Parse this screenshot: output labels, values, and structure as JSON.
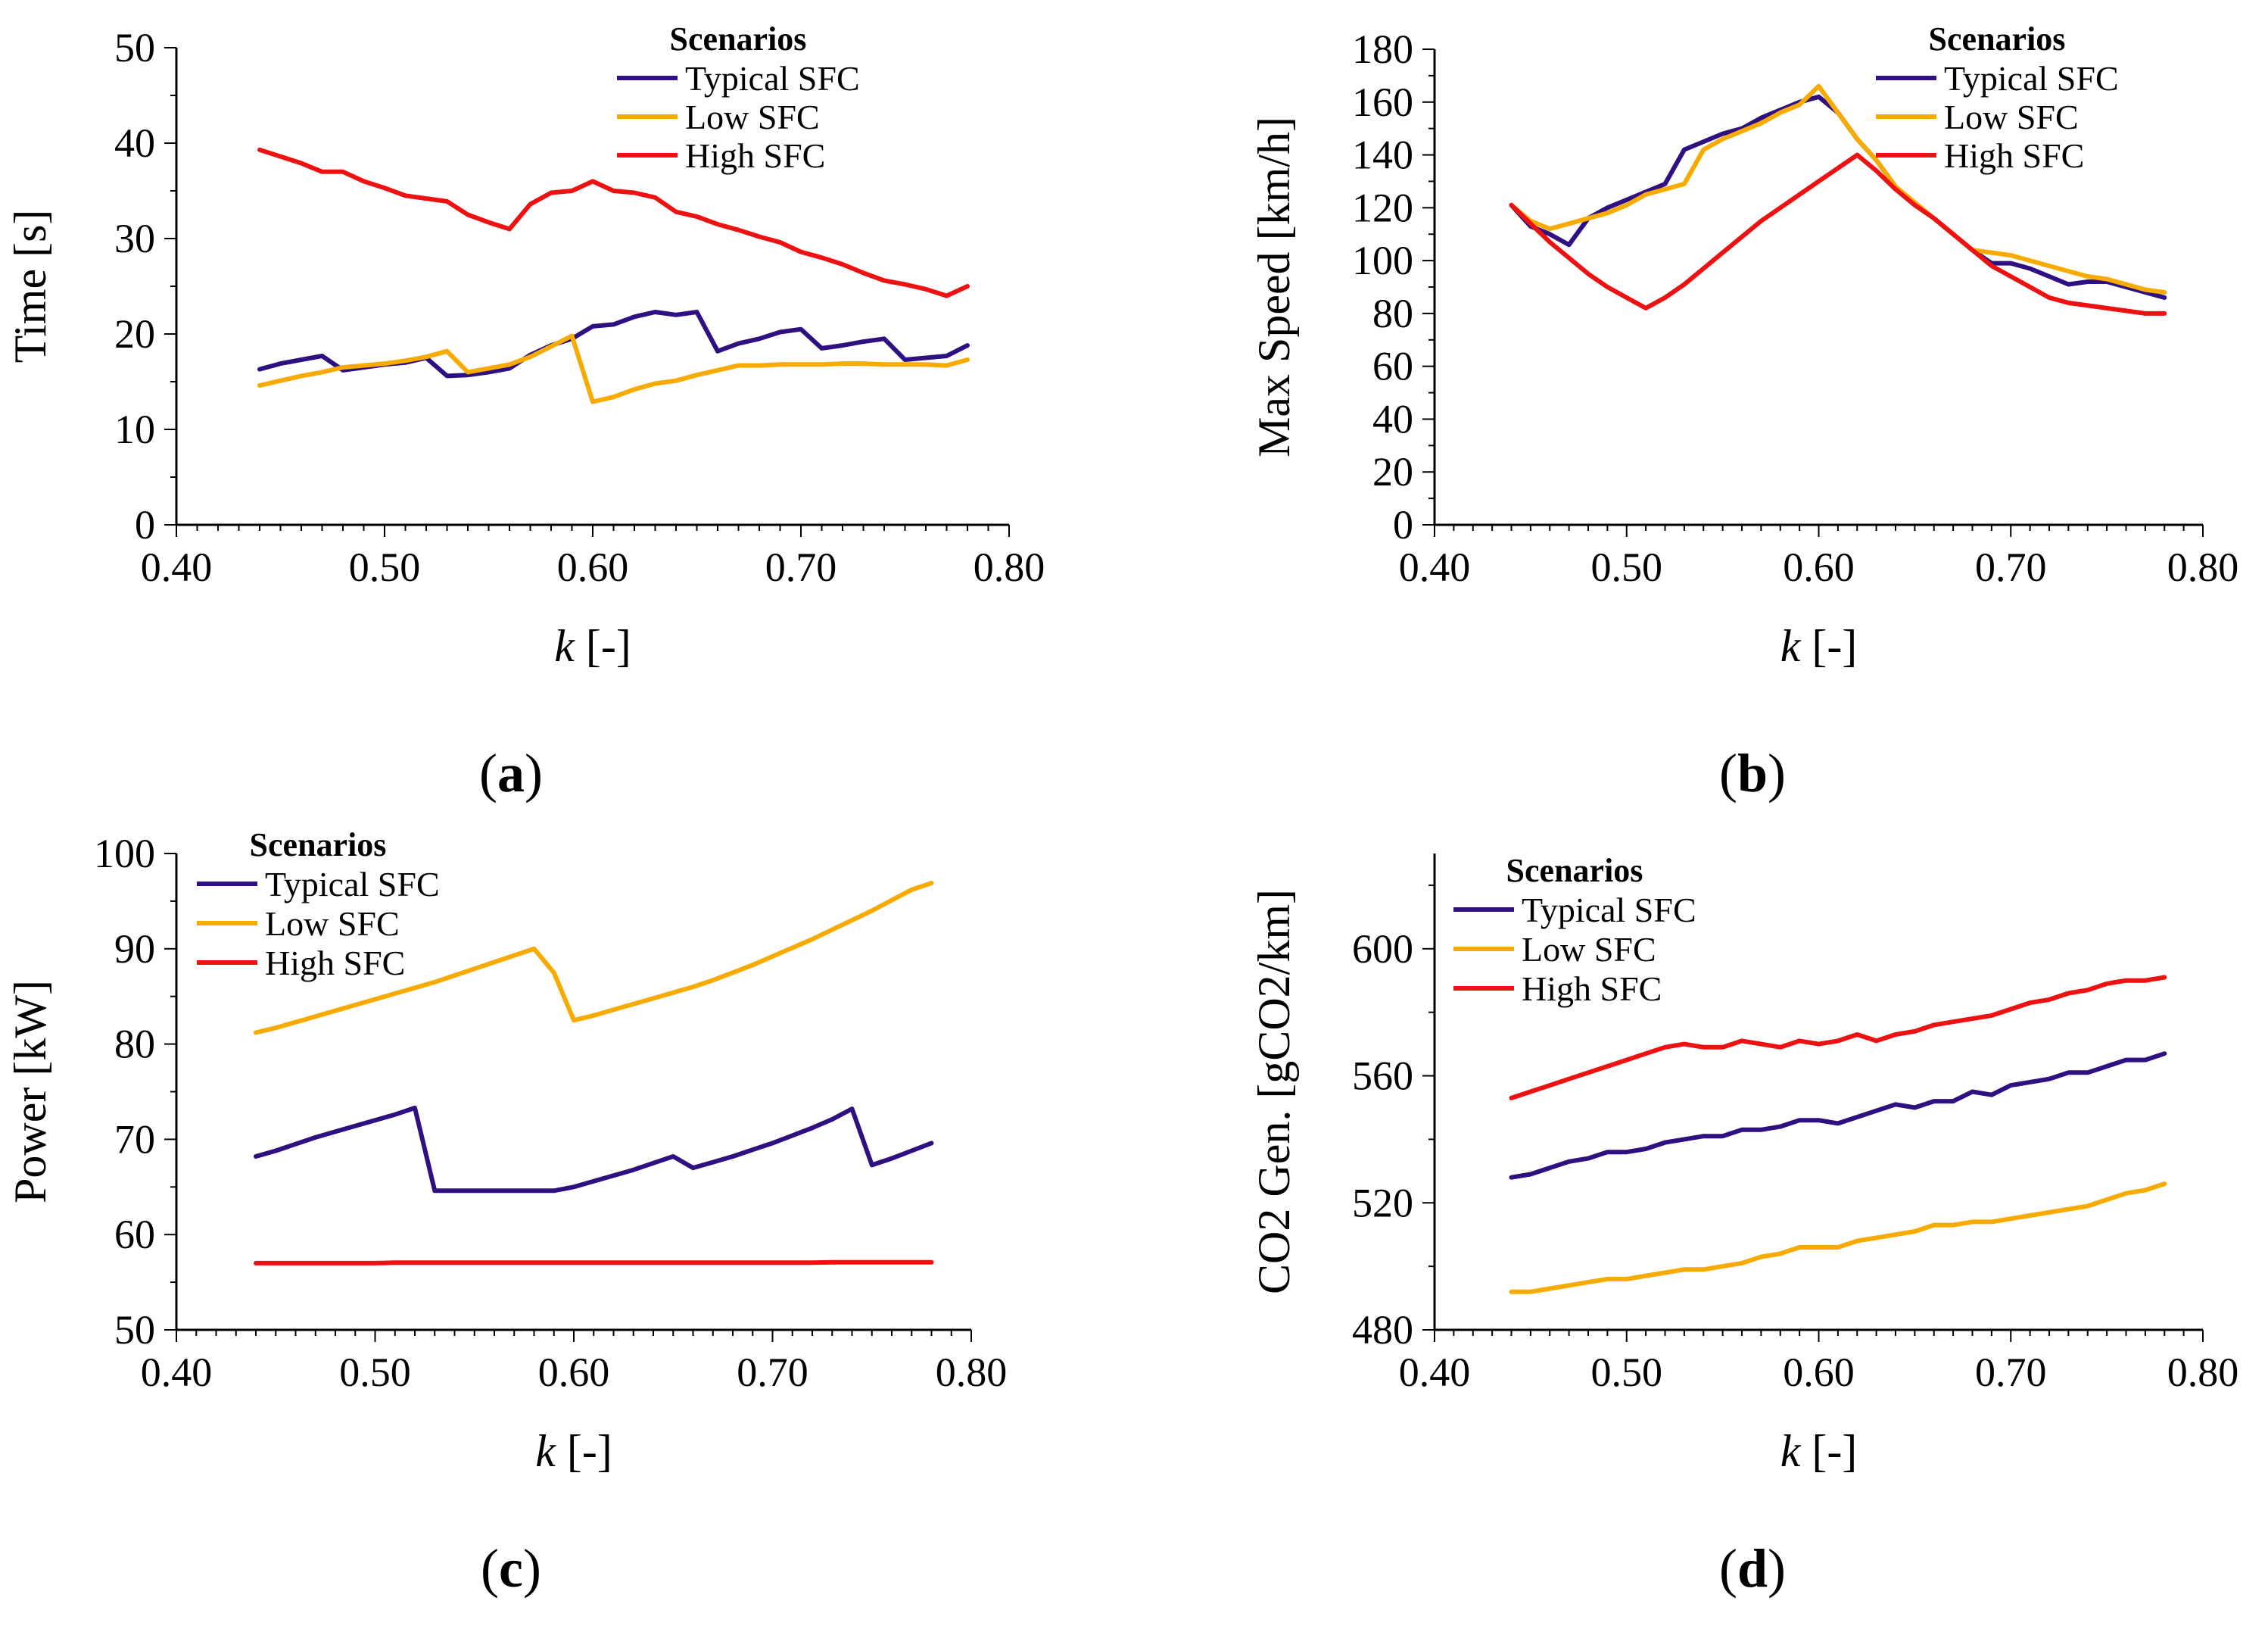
{
  "colors": {
    "typical": "#2e1080",
    "low": "#f7ab00",
    "high": "#ee1111",
    "axis": "#000000"
  },
  "chart_data": [
    {
      "id": "a",
      "type": "line",
      "caption": {
        "open": "(",
        "letter": "a",
        "close": ")"
      },
      "xlabel": {
        "italic": "k",
        "rest": " [-]"
      },
      "ylabel": "Time [s]",
      "xlim": [
        0.4,
        0.8
      ],
      "ylim": [
        0,
        50
      ],
      "xticks": [
        "0.40",
        "0.50",
        "0.60",
        "0.70",
        "0.80"
      ],
      "yticks": [
        "0",
        "10",
        "20",
        "30",
        "40",
        "50"
      ],
      "legend_title": "Scenarios",
      "x": [
        0.44,
        0.45,
        0.46,
        0.47,
        0.48,
        0.49,
        0.5,
        0.51,
        0.52,
        0.53,
        0.54,
        0.55,
        0.56,
        0.57,
        0.58,
        0.59,
        0.6,
        0.61,
        0.62,
        0.63,
        0.64,
        0.65,
        0.66,
        0.67,
        0.68,
        0.69,
        0.7,
        0.71,
        0.72,
        0.73,
        0.74,
        0.75,
        0.76,
        0.77,
        0.78
      ],
      "series": [
        {
          "name": "Typical SFC",
          "color_key": "typical",
          "values": [
            16.3,
            16.9,
            17.3,
            17.7,
            16.2,
            16.5,
            16.8,
            17.0,
            17.5,
            15.6,
            15.7,
            16.0,
            16.4,
            17.8,
            18.8,
            19.5,
            20.8,
            21.0,
            21.8,
            22.3,
            22.0,
            22.3,
            18.2,
            19.0,
            19.5,
            20.2,
            20.5,
            18.5,
            18.8,
            19.2,
            19.5,
            17.3,
            17.5,
            17.7,
            18.8
          ]
        },
        {
          "name": "Low SFC",
          "color_key": "low",
          "values": [
            14.6,
            15.1,
            15.6,
            16.0,
            16.5,
            16.7,
            16.9,
            17.2,
            17.6,
            18.2,
            16.0,
            16.4,
            16.8,
            17.6,
            18.7,
            19.8,
            12.9,
            13.4,
            14.2,
            14.8,
            15.1,
            15.7,
            16.2,
            16.7,
            16.7,
            16.8,
            16.8,
            16.8,
            16.9,
            16.9,
            16.8,
            16.8,
            16.8,
            16.7,
            17.3
          ]
        },
        {
          "name": "High SFC",
          "color_key": "high",
          "values": [
            39.3,
            38.6,
            37.9,
            37.0,
            37.0,
            36.0,
            35.3,
            34.5,
            34.2,
            33.9,
            32.5,
            31.7,
            31.0,
            33.6,
            34.8,
            35.0,
            36.0,
            35.0,
            34.8,
            34.3,
            32.8,
            32.3,
            31.5,
            30.9,
            30.2,
            29.6,
            28.6,
            28.0,
            27.3,
            26.4,
            25.6,
            25.2,
            24.7,
            24.0,
            25.0
          ]
        }
      ]
    },
    {
      "id": "b",
      "type": "line",
      "caption": {
        "open": "(",
        "letter": "b",
        "close": ")"
      },
      "xlabel": {
        "italic": "k",
        "rest": " [-]"
      },
      "ylabel": "Max Speed [km/h]",
      "xlim": [
        0.4,
        0.8
      ],
      "ylim": [
        0,
        180
      ],
      "xticks": [
        "0.40",
        "0.50",
        "0.60",
        "0.70",
        "0.80"
      ],
      "yticks": [
        "0",
        "20",
        "40",
        "60",
        "80",
        "100",
        "120",
        "140",
        "160",
        "180"
      ],
      "legend_title": "Scenarios",
      "x": [
        0.44,
        0.45,
        0.46,
        0.47,
        0.48,
        0.49,
        0.5,
        0.51,
        0.52,
        0.53,
        0.54,
        0.55,
        0.56,
        0.57,
        0.58,
        0.59,
        0.6,
        0.61,
        0.62,
        0.63,
        0.64,
        0.65,
        0.66,
        0.67,
        0.68,
        0.69,
        0.7,
        0.71,
        0.72,
        0.73,
        0.74,
        0.75,
        0.76,
        0.77,
        0.78
      ],
      "series": [
        {
          "name": "Typical SFC",
          "color_key": "typical",
          "values": [
            121,
            113,
            110,
            106,
            116,
            120,
            123,
            126,
            129,
            142,
            145,
            148,
            150,
            154,
            157,
            160,
            162,
            156,
            146,
            138,
            128,
            121,
            116,
            110,
            104,
            99,
            99,
            97,
            94,
            91,
            92,
            92,
            90,
            88,
            86
          ]
        },
        {
          "name": "Low SFC",
          "color_key": "low",
          "values": [
            121,
            115,
            112,
            114,
            116,
            118,
            121,
            125,
            127,
            129,
            142,
            146,
            149,
            152,
            156,
            159,
            166,
            156,
            146,
            138,
            128,
            122,
            116,
            110,
            104,
            103,
            102,
            100,
            98,
            96,
            94,
            93,
            91,
            89,
            88
          ]
        },
        {
          "name": "High SFC",
          "color_key": "high",
          "values": [
            121,
            114,
            107,
            101,
            95,
            90,
            86,
            82,
            86,
            91,
            97,
            103,
            109,
            115,
            120,
            125,
            130,
            135,
            140,
            134,
            127,
            121,
            116,
            110,
            104,
            98,
            94,
            90,
            86,
            84,
            83,
            82,
            81,
            80,
            80
          ]
        }
      ]
    },
    {
      "id": "c",
      "type": "line",
      "caption": {
        "open": "(",
        "letter": "c",
        "close": ")"
      },
      "xlabel": {
        "italic": "k",
        "rest": " [-]"
      },
      "ylabel": "Power [kW]",
      "xlim": [
        0.4,
        0.8
      ],
      "ylim": [
        50,
        100
      ],
      "xticks": [
        "0.40",
        "0.50",
        "0.60",
        "0.70",
        "0.80"
      ],
      "yticks": [
        "50",
        "60",
        "70",
        "80",
        "90",
        "100"
      ],
      "legend_title": "Scenarios",
      "x": [
        0.44,
        0.45,
        0.46,
        0.47,
        0.48,
        0.49,
        0.5,
        0.51,
        0.52,
        0.53,
        0.54,
        0.55,
        0.56,
        0.57,
        0.58,
        0.59,
        0.6,
        0.61,
        0.62,
        0.63,
        0.64,
        0.65,
        0.66,
        0.67,
        0.68,
        0.69,
        0.7,
        0.71,
        0.72,
        0.73,
        0.74,
        0.75,
        0.76,
        0.77,
        0.78
      ],
      "series": [
        {
          "name": "Typical SFC",
          "color_key": "typical",
          "values": [
            68.2,
            68.8,
            69.5,
            70.2,
            70.8,
            71.4,
            72.0,
            72.6,
            73.3,
            64.6,
            64.6,
            64.6,
            64.6,
            64.6,
            64.6,
            64.6,
            65.0,
            65.6,
            66.2,
            66.8,
            67.5,
            68.2,
            67.0,
            67.6,
            68.2,
            68.9,
            69.6,
            70.4,
            71.2,
            72.1,
            73.2,
            67.3,
            68.0,
            68.8,
            69.6
          ]
        },
        {
          "name": "Low SFC",
          "color_key": "low",
          "values": [
            81.2,
            81.7,
            82.3,
            82.9,
            83.5,
            84.1,
            84.7,
            85.3,
            85.9,
            86.5,
            87.2,
            87.9,
            88.6,
            89.3,
            90.0,
            87.5,
            82.5,
            83.0,
            83.6,
            84.2,
            84.8,
            85.4,
            86.0,
            86.7,
            87.5,
            88.3,
            89.2,
            90.1,
            91.0,
            92.0,
            93.0,
            94.0,
            95.1,
            96.2,
            96.9
          ]
        },
        {
          "name": "High SFC",
          "color_key": "high",
          "values": [
            57.0,
            57.0,
            57.0,
            57.0,
            57.0,
            57.0,
            57.0,
            57.05,
            57.05,
            57.05,
            57.05,
            57.05,
            57.05,
            57.05,
            57.05,
            57.05,
            57.05,
            57.05,
            57.05,
            57.05,
            57.05,
            57.05,
            57.05,
            57.05,
            57.05,
            57.05,
            57.05,
            57.05,
            57.05,
            57.1,
            57.1,
            57.1,
            57.1,
            57.1,
            57.1
          ]
        }
      ]
    },
    {
      "id": "d",
      "type": "line",
      "caption": {
        "open": "(",
        "letter": "d",
        "close": ")"
      },
      "xlabel": {
        "italic": "k",
        "rest": " [-]"
      },
      "ylabel": "CO2 Gen. [gCO2/km]",
      "xlim": [
        0.4,
        0.8
      ],
      "ylim": [
        480,
        630
      ],
      "xticks": [
        "0.40",
        "0.50",
        "0.60",
        "0.70",
        "0.80"
      ],
      "yticks": [
        "480",
        "520",
        "560",
        "600"
      ],
      "ytick_values": [
        480,
        520,
        560,
        600
      ],
      "legend_title": "Scenarios",
      "x": [
        0.44,
        0.45,
        0.46,
        0.47,
        0.48,
        0.49,
        0.5,
        0.51,
        0.52,
        0.53,
        0.54,
        0.55,
        0.56,
        0.57,
        0.58,
        0.59,
        0.6,
        0.61,
        0.62,
        0.63,
        0.64,
        0.65,
        0.66,
        0.67,
        0.68,
        0.69,
        0.7,
        0.71,
        0.72,
        0.73,
        0.74,
        0.75,
        0.76,
        0.77,
        0.78
      ],
      "series": [
        {
          "name": "Typical SFC",
          "color_key": "typical",
          "values": [
            528,
            529,
            531,
            533,
            534,
            536,
            536,
            537,
            539,
            540,
            541,
            541,
            543,
            543,
            544,
            546,
            546,
            545,
            547,
            549,
            551,
            550,
            552,
            552,
            555,
            554,
            557,
            558,
            559,
            561,
            561,
            563,
            565,
            565,
            567
          ]
        },
        {
          "name": "Low SFC",
          "color_key": "low",
          "values": [
            492,
            492,
            493,
            494,
            495,
            496,
            496,
            497,
            498,
            499,
            499,
            500,
            501,
            503,
            504,
            506,
            506,
            506,
            508,
            509,
            510,
            511,
            513,
            513,
            514,
            514,
            515,
            516,
            517,
            518,
            519,
            521,
            523,
            524,
            526
          ]
        },
        {
          "name": "High SFC",
          "color_key": "high",
          "values": [
            553,
            555,
            557,
            559,
            561,
            563,
            565,
            567,
            569,
            570,
            569,
            569,
            571,
            570,
            569,
            571,
            570,
            571,
            573,
            571,
            573,
            574,
            576,
            577,
            578,
            579,
            581,
            583,
            584,
            586,
            587,
            589,
            590,
            590,
            591
          ]
        }
      ]
    }
  ]
}
